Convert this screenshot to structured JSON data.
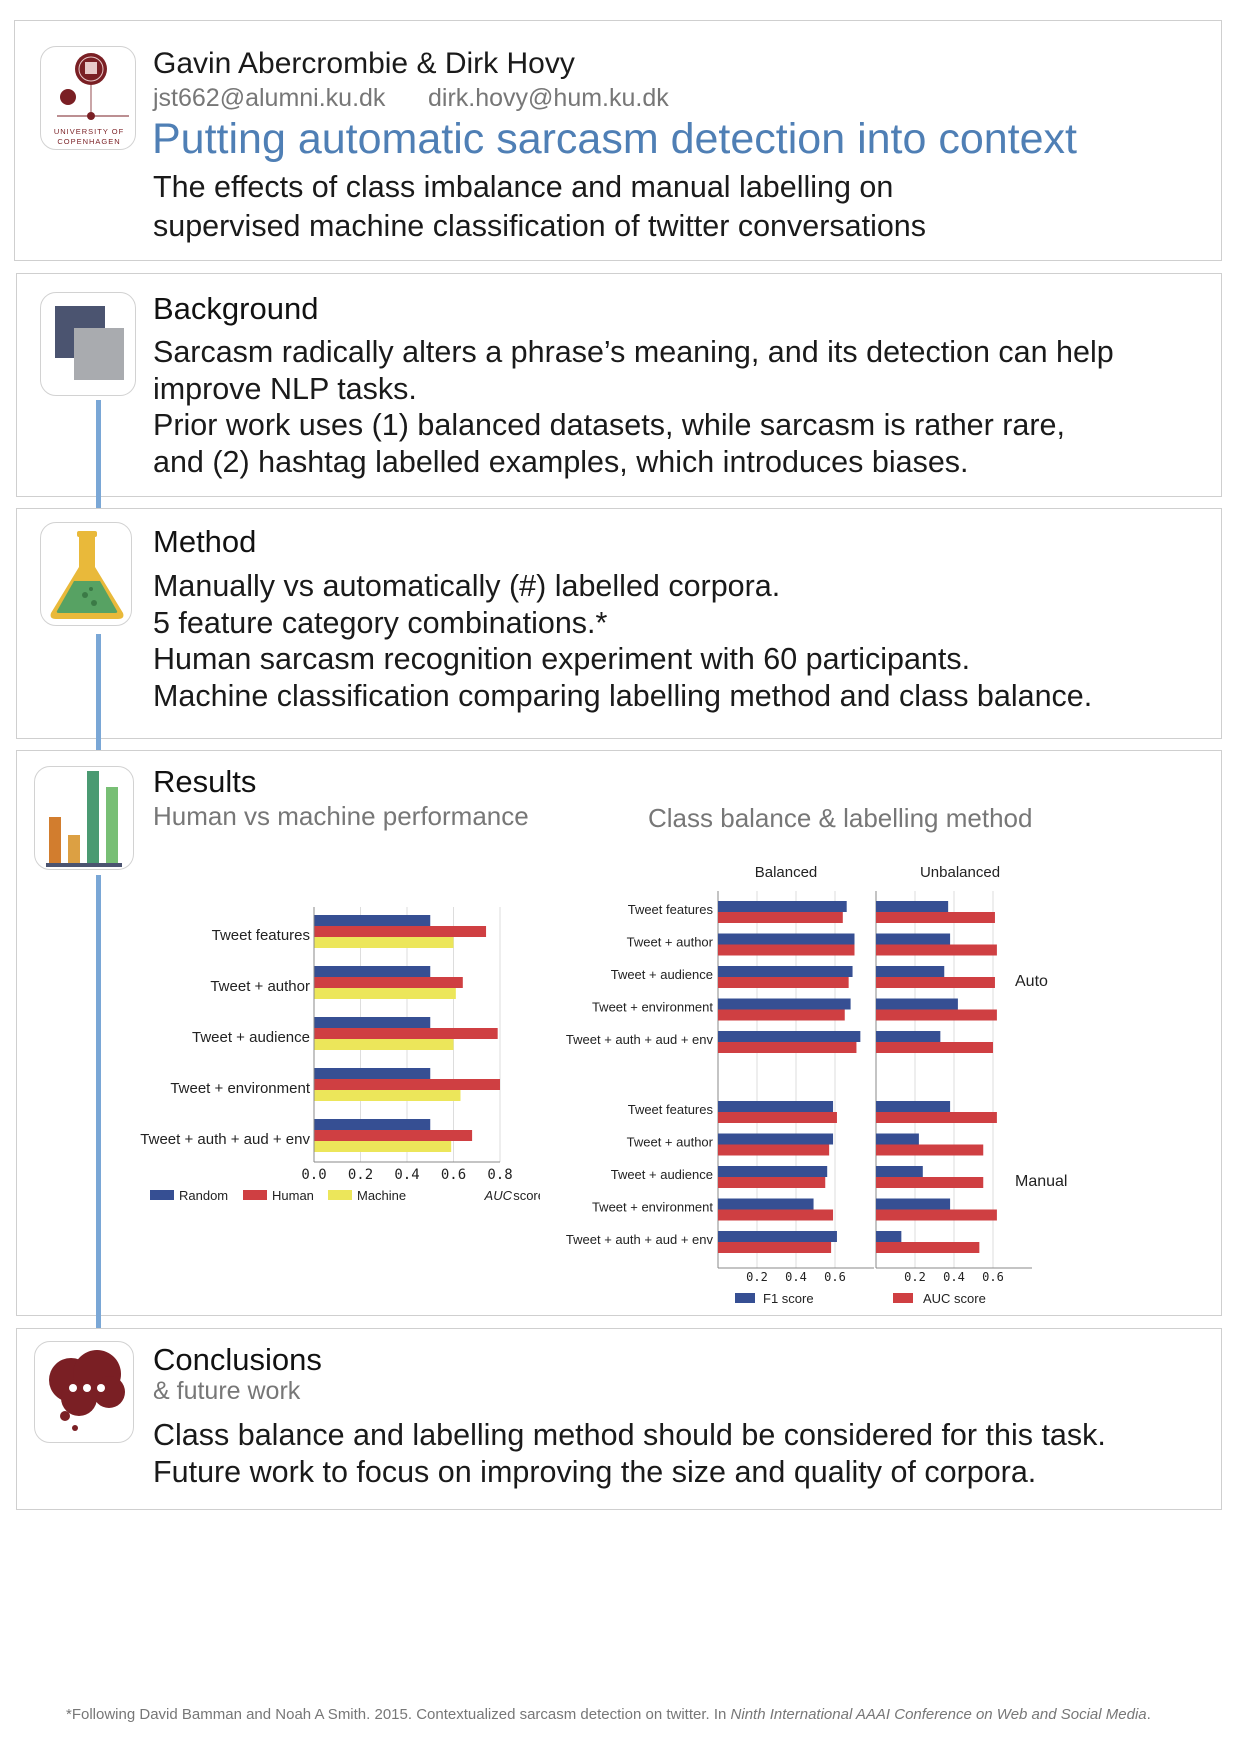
{
  "header": {
    "author1": "Gavin Abercrombie",
    "ampersand": "&",
    "author2": "Dirk Hovy",
    "email1": "jst662@alumni.ku.dk",
    "email2": "dirk.hovy@hum.ku.dk",
    "title": "Putting automatic sarcasm detection into context",
    "subtitle_line1": "The effects of class imbalance and manual labelling on",
    "subtitle_line2": "supervised machine classification of twitter conversations",
    "logo_text_line1": "UNIVERSITY OF",
    "logo_text_line2": "COPENHAGEN"
  },
  "background": {
    "title": "Background",
    "lines": [
      "Sarcasm radically alters a phrase’s meaning, and its detection can help",
      "improve NLP tasks.",
      "Prior work uses (1) balanced datasets, while sarcasm is rather rare,",
      "and (2) hashtag labelled examples, which introduces biases."
    ]
  },
  "method": {
    "title": "Method",
    "lines": [
      "Manually vs automatically (#) labelled corpora.",
      "5 feature category combinations.*",
      "Human sarcasm recognition experiment with 60 participants.",
      "Machine classification comparing labelling method and class balance."
    ]
  },
  "results": {
    "title": "Results",
    "subtitle_left": "Human vs machine performance",
    "subtitle_right": "Class balance & labelling method"
  },
  "conclusions": {
    "title": "Conclusions",
    "subtitle": "& future work",
    "lines": [
      "Class balance and labelling method should be considered for this task.",
      "Future work to focus on improving the size and quality of corpora."
    ]
  },
  "footnote": {
    "text": "*Following David Bamman and Noah A Smith. 2015. Contextualized sarcasm detection on twitter. In ",
    "venue": "Ninth International AAAI Conference on Web and Social Media",
    "end": "."
  },
  "colors": {
    "title_blue": "#4f7fb5",
    "connector": "#7aa7d6",
    "random": "#364f93",
    "human": "#cf3f42",
    "machine": "#ece65a"
  },
  "chart_data": [
    {
      "type": "bar",
      "orientation": "horizontal",
      "categories": [
        "Tweet features",
        "Tweet + author",
        "Tweet + audience",
        "Tweet + environment",
        "Tweet + auth + aud + env"
      ],
      "series": [
        {
          "name": "Random",
          "color": "#364f93",
          "values": [
            0.5,
            0.5,
            0.5,
            0.5,
            0.5
          ]
        },
        {
          "name": "Human",
          "color": "#cf3f42",
          "values": [
            0.74,
            0.64,
            0.79,
            0.8,
            0.68
          ]
        },
        {
          "name": "Machine",
          "color": "#ece65a",
          "values": [
            0.6,
            0.61,
            0.6,
            0.63,
            0.59
          ]
        }
      ],
      "xlabel": "AUC score",
      "xlim": [
        0,
        0.8
      ],
      "xticks": [
        "0.0",
        "0.2",
        "0.4",
        "0.6",
        "0.8"
      ],
      "grid": true,
      "legend_position": "bottom"
    },
    {
      "type": "bar",
      "orientation": "horizontal",
      "columns": [
        "Balanced",
        "Unbalanced"
      ],
      "groups": [
        "Auto",
        "Manual"
      ],
      "categories": [
        "Tweet features",
        "Tweet + author",
        "Tweet + audience",
        "Tweet + environment",
        "Tweet + auth + aud + env"
      ],
      "series_names": [
        "F1 score",
        "AUC score"
      ],
      "series_colors": [
        "#364f93",
        "#cf3f42"
      ],
      "data": {
        "Balanced": {
          "Auto": {
            "F1 score": [
              0.66,
              0.7,
              0.69,
              0.68,
              0.73
            ],
            "AUC score": [
              0.64,
              0.7,
              0.67,
              0.65,
              0.71
            ]
          },
          "Manual": {
            "F1 score": [
              0.59,
              0.59,
              0.56,
              0.49,
              0.61
            ],
            "AUC score": [
              0.61,
              0.57,
              0.55,
              0.59,
              0.58
            ]
          }
        },
        "Unbalanced": {
          "Auto": {
            "F1 score": [
              0.37,
              0.38,
              0.35,
              0.42,
              0.33
            ],
            "AUC score": [
              0.61,
              0.62,
              0.61,
              0.62,
              0.6
            ]
          },
          "Manual": {
            "F1 score": [
              0.38,
              0.22,
              0.24,
              0.38,
              0.13
            ],
            "AUC score": [
              0.62,
              0.55,
              0.55,
              0.62,
              0.53
            ]
          }
        }
      },
      "xlim": [
        0,
        0.8
      ],
      "xticks": [
        "0.2",
        "0.4",
        "0.6"
      ],
      "grid": true,
      "legend_position": "bottom"
    }
  ]
}
